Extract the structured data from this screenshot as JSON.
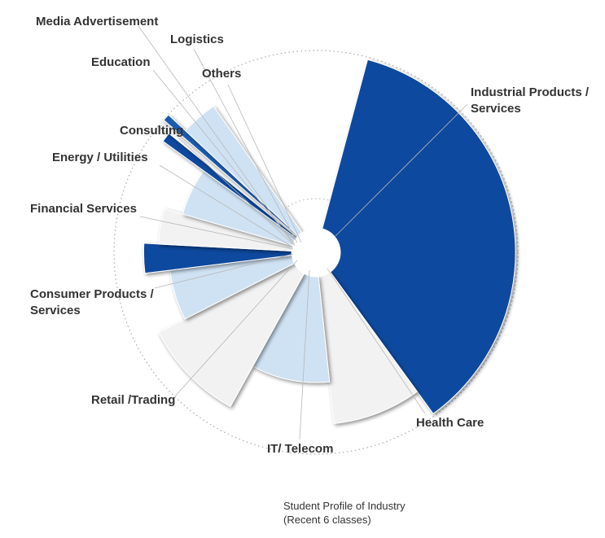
{
  "chart_data": {
    "type": "pie",
    "subtype": "polar-area (radius encodes value)",
    "title": "Student Profile of Industry",
    "subtitle": "(Recent 6 classes)",
    "categories": [
      "Industrial Products / Services",
      "Health Care",
      "IT/ Telecom",
      "Retail /Trading",
      "Consumer Products / Services",
      "Financial Services",
      "Energy / Utilities",
      "Consulting",
      "Others",
      "Education",
      "Logistics",
      "Media Advertisement"
    ],
    "slices": [
      {
        "label": "Industrial Products / Services",
        "angle_deg": 129,
        "radius": 0.95,
        "color": "#0d4a9e"
      },
      {
        "label": "Health Care",
        "angle_deg": 30,
        "radius": 0.82,
        "color": "#f2f2f2"
      },
      {
        "label": "IT/ Telecom",
        "angle_deg": 35,
        "radius": 0.62,
        "color": "#cfe2f3"
      },
      {
        "label": "Retail /Trading",
        "angle_deg": 34,
        "radius": 0.84,
        "color": "#f2f2f2"
      },
      {
        "label": "Consumer Products / Services",
        "angle_deg": 20,
        "radius": 0.7,
        "color": "#cfe2f3"
      },
      {
        "label": "Financial Services",
        "angle_deg": 10,
        "radius": 0.82,
        "color": "#0d4a9e"
      },
      {
        "label": "Energy / Utilities",
        "angle_deg": 13,
        "radius": 0.75,
        "color": "#f2f2f2"
      },
      {
        "label": "Consulting",
        "angle_deg": 20,
        "radius": 0.66,
        "color": "#cfe2f3"
      },
      {
        "label": "Education",
        "angle_deg": 3,
        "radius": 0.9,
        "color": "#0d4a9e"
      },
      {
        "label": "Logistics",
        "angle_deg": 2,
        "radius": 0.97,
        "color": "#f2f2f2"
      },
      {
        "label": "Media Advertisement",
        "angle_deg": 2,
        "radius": 0.96,
        "color": "#1a5cb0"
      },
      {
        "label": "Others",
        "angle_deg": 12,
        "radius": 0.85,
        "color": "#cfe2f3"
      }
    ]
  }
}
